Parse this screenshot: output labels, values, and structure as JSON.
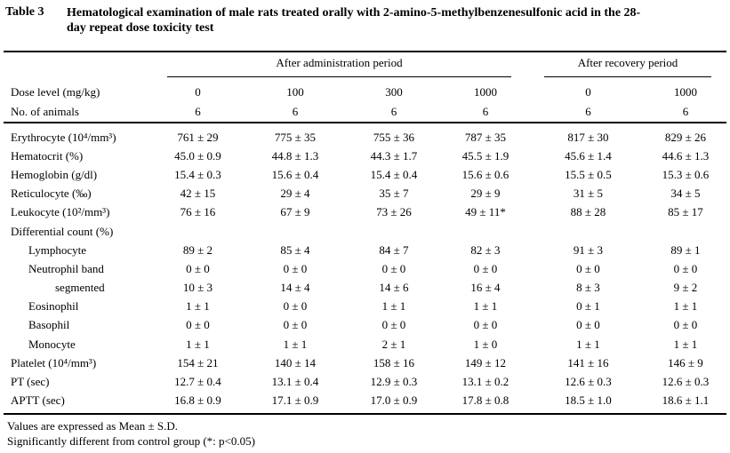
{
  "caption": {
    "label": "Table 3",
    "line1": "Hematological examination of male rats treated orally with 2-amino-5-methylbenzenesulfonic acid in the 28-",
    "line2": "day repeat dose toxicity test"
  },
  "header": {
    "admin_period": "After administration period",
    "recovery_period": "After recovery period",
    "dose_row": {
      "label": "Dose level (mg/kg)",
      "values": [
        "0",
        "100",
        "300",
        "1000",
        "0",
        "1000"
      ]
    },
    "animals_row": {
      "label": "No. of animals",
      "values": [
        "6",
        "6",
        "6",
        "6",
        "6",
        "6"
      ]
    }
  },
  "rows": [
    {
      "label": "Erythrocyte (10⁴/mm³)",
      "indent": 0,
      "values": [
        "761 ± 29",
        "775 ± 35",
        "755 ± 36",
        "787 ± 35",
        "817 ± 30",
        "829 ± 26"
      ]
    },
    {
      "label": "Hematocrit (%)",
      "indent": 0,
      "values": [
        "45.0 ± 0.9",
        "44.8 ± 1.3",
        "44.3 ± 1.7",
        "45.5 ± 1.9",
        "45.6 ± 1.4",
        "44.6 ± 1.3"
      ]
    },
    {
      "label": "Hemoglobin (g/dl)",
      "indent": 0,
      "values": [
        "15.4 ± 0.3",
        "15.6 ± 0.4",
        "15.4 ± 0.4",
        "15.6 ± 0.6",
        "15.5 ± 0.5",
        "15.3 ± 0.6"
      ]
    },
    {
      "label": "Reticulocyte (‰)",
      "indent": 0,
      "values": [
        "42 ± 15",
        "29 ± 4",
        "35 ± 7",
        "29 ± 9",
        "31 ± 5",
        "34 ± 5"
      ]
    },
    {
      "label": "Leukocyte (10²/mm³)",
      "indent": 0,
      "values": [
        "76 ± 16",
        "67 ± 9",
        "73 ± 26",
        "49 ± 11*",
        "88 ± 28",
        "85 ± 17"
      ]
    },
    {
      "label": "Differential count (%)",
      "indent": 0,
      "values": [
        "",
        "",
        "",
        "",
        "",
        ""
      ]
    },
    {
      "label": "Lymphocyte",
      "indent": 1,
      "values": [
        "89 ± 2",
        "85 ± 4",
        "84 ± 7",
        "82 ± 3",
        "91 ± 3",
        "89 ± 1"
      ]
    },
    {
      "label": "Neutrophil band",
      "indent": 1,
      "values": [
        "0 ± 0",
        "0 ± 0",
        "0 ± 0",
        "0 ± 0",
        "0 ± 0",
        "0 ± 0"
      ]
    },
    {
      "label": "segmented",
      "indent": 2,
      "values": [
        "10 ± 3",
        "14 ± 4",
        "14 ± 6",
        "16 ± 4",
        "8 ± 3",
        "9 ± 2"
      ]
    },
    {
      "label": "Eosinophil",
      "indent": 1,
      "values": [
        "1 ± 1",
        "0 ± 0",
        "1 ± 1",
        "1 ± 1",
        "0 ± 1",
        "1 ± 1"
      ]
    },
    {
      "label": "Basophil",
      "indent": 1,
      "values": [
        "0 ± 0",
        "0 ± 0",
        "0 ± 0",
        "0 ± 0",
        "0 ± 0",
        "0 ± 0"
      ]
    },
    {
      "label": "Monocyte",
      "indent": 1,
      "values": [
        "1 ± 1",
        "1 ± 1",
        "2 ± 1",
        "1 ± 0",
        "1 ± 1",
        "1 ± 1"
      ]
    },
    {
      "label": "Platelet (10⁴/mm³)",
      "indent": 0,
      "values": [
        "154 ± 21",
        "140 ± 14",
        "158 ± 16",
        "149 ± 12",
        "141 ± 16",
        "146 ± 9"
      ]
    },
    {
      "label": "PT (sec)",
      "indent": 0,
      "values": [
        "12.7 ± 0.4",
        "13.1 ± 0.4",
        "12.9 ± 0.3",
        "13.1 ± 0.2",
        "12.6 ± 0.3",
        "12.6 ± 0.3"
      ]
    },
    {
      "label": "APTT (sec)",
      "indent": 0,
      "values": [
        "16.8 ± 0.9",
        "17.1 ± 0.9",
        "17.0 ± 0.9",
        "17.8 ± 0.8",
        "18.5 ± 1.0",
        "18.6 ± 1.1"
      ]
    }
  ],
  "footnotes": [
    "Values are expressed as Mean ± S.D.",
    "Significantly different from control group (*: p<0.05)"
  ],
  "colors": {
    "text": "#000000",
    "background": "#ffffff"
  }
}
